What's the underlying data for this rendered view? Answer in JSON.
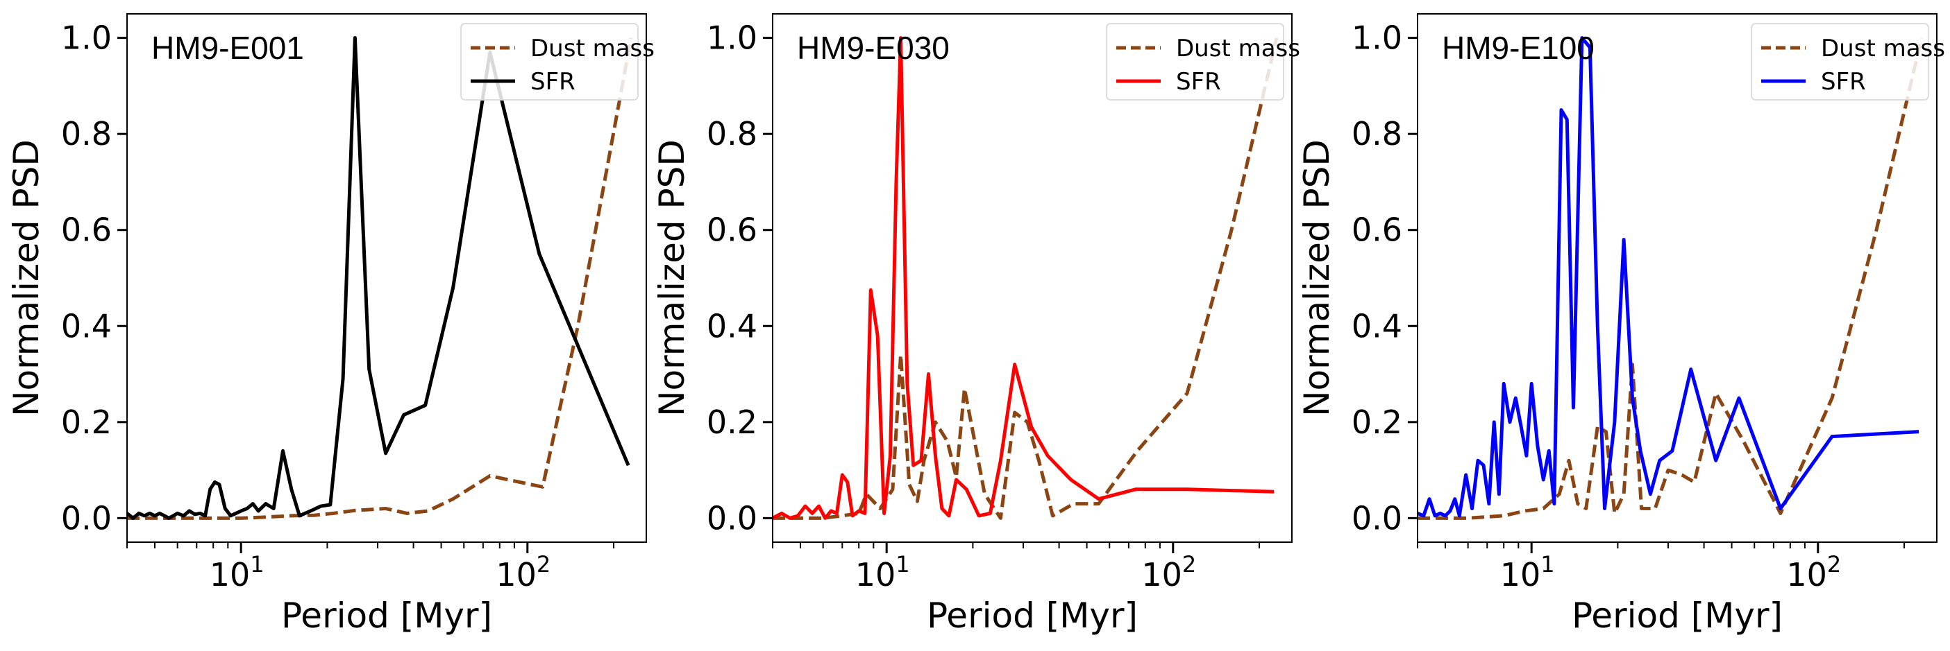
{
  "figure": {
    "chart_data": [
      {
        "type": "line",
        "title": "HM9-E001",
        "xlabel": "Period [Myr]",
        "ylabel": "Normalized PSD",
        "xscale": "log",
        "xlim": [
          4,
          260
        ],
        "ylim": [
          -0.05,
          1.05
        ],
        "yticks": [
          "0.0",
          "0.2",
          "0.4",
          "0.6",
          "0.8",
          "1.0"
        ],
        "xticks": [
          {
            "base": "10",
            "exp": "1"
          },
          {
            "base": "10",
            "exp": "2"
          }
        ],
        "legend_position": "upper-right",
        "series": [
          {
            "name": "Dust mass",
            "color": "#8B4513",
            "style": "dashed",
            "x": [
              4,
              5,
              6,
              7,
              8,
              10,
              12,
              15,
              18,
              21,
              25,
              32,
              38,
              45,
              55,
              74,
              113,
              150,
              230
            ],
            "y": [
              0.0,
              0.0,
              0.0,
              0.0,
              0.0,
              0.0,
              0.002,
              0.005,
              0.006,
              0.01,
              0.016,
              0.02,
              0.01,
              0.015,
              0.04,
              0.088,
              0.065,
              0.4,
              1.0
            ]
          },
          {
            "name": "SFR",
            "color": "#000000",
            "style": "solid",
            "x": [
              4.0,
              4.2,
              4.4,
              4.6,
              4.8,
              5.0,
              5.2,
              5.4,
              5.6,
              5.8,
              6.0,
              6.3,
              6.6,
              6.9,
              7.2,
              7.5,
              7.8,
              8.1,
              8.4,
              8.8,
              9.2,
              9.6,
              10.0,
              10.5,
              11.0,
              11.5,
              12.2,
              13.0,
              14.0,
              15.0,
              16.0,
              17.5,
              19.0,
              20.5,
              22.7,
              25.0,
              28.0,
              32.0,
              37.0,
              44.0,
              55.0,
              74.0,
              110.0,
              225.0
            ],
            "y": [
              0.01,
              0.0,
              0.01,
              0.005,
              0.01,
              0.005,
              0.01,
              0.005,
              0.0,
              0.005,
              0.01,
              0.005,
              0.015,
              0.008,
              0.01,
              0.005,
              0.06,
              0.075,
              0.07,
              0.02,
              0.005,
              0.01,
              0.015,
              0.02,
              0.03,
              0.015,
              0.03,
              0.02,
              0.14,
              0.06,
              0.005,
              0.015,
              0.025,
              0.028,
              0.29,
              1.0,
              0.31,
              0.135,
              0.215,
              0.235,
              0.48,
              0.97,
              0.55,
              0.11
            ]
          }
        ]
      },
      {
        "type": "line",
        "title": "HM9-E030",
        "xlabel": "Period [Myr]",
        "ylabel": "Normalized PSD",
        "xscale": "log",
        "xlim": [
          4,
          260
        ],
        "ylim": [
          -0.05,
          1.05
        ],
        "yticks": [
          "0.0",
          "0.2",
          "0.4",
          "0.6",
          "0.8",
          "1.0"
        ],
        "xticks": [
          {
            "base": "10",
            "exp": "1"
          },
          {
            "base": "10",
            "exp": "2"
          }
        ],
        "legend_position": "upper-right",
        "series": [
          {
            "name": "Dust mass",
            "color": "#8B4513",
            "style": "dashed",
            "x": [
              4,
              6,
              7,
              8,
              8.5,
              9.5,
              10.5,
              11.2,
              12,
              12.8,
              13.5,
              14.8,
              16.3,
              17.5,
              18.7,
              20,
              22,
              25,
              28,
              31,
              34,
              38,
              45,
              55,
              75,
              112,
              160,
              230
            ],
            "y": [
              0.0,
              0.0,
              0.005,
              0.01,
              0.05,
              0.02,
              0.06,
              0.34,
              0.07,
              0.035,
              0.12,
              0.2,
              0.16,
              0.085,
              0.27,
              0.18,
              0.05,
              0.0,
              0.22,
              0.2,
              0.12,
              0.005,
              0.03,
              0.03,
              0.14,
              0.26,
              0.6,
              1.0
            ]
          },
          {
            "name": "SFR",
            "color": "#FF0000",
            "style": "solid",
            "x": [
              4.0,
              4.3,
              4.6,
              4.9,
              5.2,
              5.5,
              5.8,
              6.1,
              6.4,
              6.7,
              7.0,
              7.3,
              7.6,
              8.0,
              8.4,
              8.8,
              9.3,
              9.8,
              10.3,
              10.8,
              11.2,
              11.8,
              12.4,
              13.2,
              14.0,
              14.8,
              15.6,
              16.5,
              17.5,
              19.0,
              21.0,
              23.0,
              25.0,
              28.0,
              32.0,
              36.5,
              44.0,
              55.0,
              74.0,
              112.0,
              225.0
            ],
            "y": [
              0.0,
              0.01,
              0.0,
              0.005,
              0.025,
              0.01,
              0.025,
              0.0,
              0.015,
              0.01,
              0.09,
              0.075,
              0.005,
              0.015,
              0.01,
              0.475,
              0.38,
              0.01,
              0.13,
              0.7,
              1.0,
              0.28,
              0.11,
              0.12,
              0.3,
              0.13,
              0.02,
              0.005,
              0.08,
              0.06,
              0.005,
              0.01,
              0.12,
              0.32,
              0.19,
              0.13,
              0.08,
              0.04,
              0.06,
              0.06,
              0.055
            ]
          }
        ]
      },
      {
        "type": "line",
        "title": "HM9-E100",
        "xlabel": "Period [Myr]",
        "ylabel": "Normalized PSD",
        "xscale": "log",
        "xlim": [
          4,
          260
        ],
        "ylim": [
          -0.05,
          1.05
        ],
        "yticks": [
          "0.0",
          "0.2",
          "0.4",
          "0.6",
          "0.8",
          "1.0"
        ],
        "xticks": [
          {
            "base": "10",
            "exp": "1"
          },
          {
            "base": "10",
            "exp": "2"
          }
        ],
        "legend_position": "upper-right",
        "series": [
          {
            "name": "Dust mass",
            "color": "#8B4513",
            "style": "dashed",
            "x": [
              4,
              6,
              8,
              9.5,
              11,
              12.5,
              13.5,
              14.5,
              15.5,
              17,
              18.2,
              19.5,
              21,
              22.5,
              24.2,
              27,
              30,
              33.5,
              37,
              44,
              55,
              74,
              112,
              160,
              230
            ],
            "y": [
              0.0,
              0.0,
              0.005,
              0.015,
              0.02,
              0.05,
              0.12,
              0.03,
              0.02,
              0.19,
              0.18,
              0.01,
              0.05,
              0.32,
              0.02,
              0.02,
              0.1,
              0.09,
              0.075,
              0.26,
              0.16,
              0.01,
              0.25,
              0.6,
              1.0
            ]
          },
          {
            "name": "SFR",
            "color": "#0000FF",
            "style": "solid",
            "x": [
              4.0,
              4.2,
              4.4,
              4.6,
              4.8,
              5.0,
              5.2,
              5.4,
              5.6,
              5.9,
              6.2,
              6.5,
              6.8,
              7.1,
              7.4,
              7.7,
              8.0,
              8.4,
              8.8,
              9.2,
              9.6,
              10.0,
              10.5,
              11.0,
              11.5,
              12.0,
              12.7,
              13.3,
              14.0,
              15.0,
              16.0,
              17.0,
              18.0,
              19.5,
              21.0,
              22.5,
              24.0,
              26.0,
              28.0,
              31.0,
              36.0,
              44.0,
              53.0,
              74.0,
              112.0,
              225.0
            ],
            "y": [
              0.01,
              0.005,
              0.04,
              0.005,
              0.01,
              0.005,
              0.015,
              0.04,
              0.005,
              0.09,
              0.02,
              0.12,
              0.11,
              0.03,
              0.2,
              0.05,
              0.28,
              0.2,
              0.25,
              0.19,
              0.13,
              0.28,
              0.15,
              0.08,
              0.14,
              0.03,
              0.85,
              0.83,
              0.23,
              1.0,
              0.98,
              0.4,
              0.02,
              0.2,
              0.58,
              0.25,
              0.14,
              0.05,
              0.12,
              0.14,
              0.31,
              0.12,
              0.25,
              0.02,
              0.17,
              0.18
            ]
          }
        ]
      }
    ]
  }
}
